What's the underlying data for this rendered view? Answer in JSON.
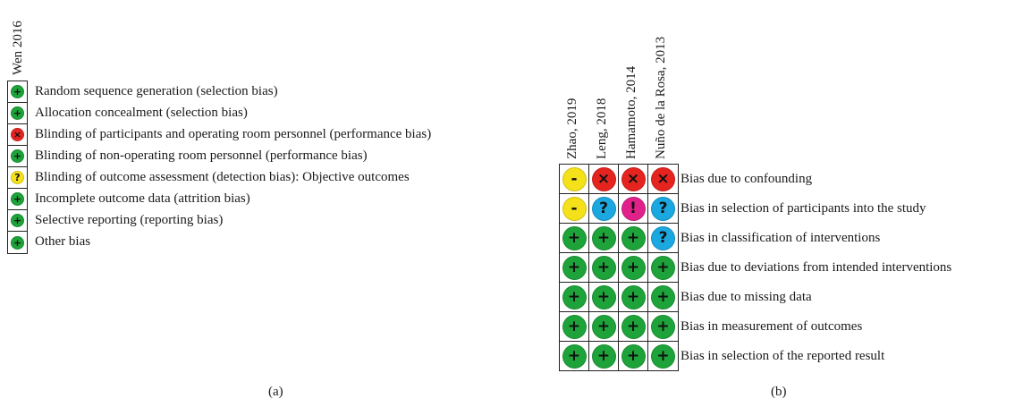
{
  "colors": {
    "low": "#1ea33a",
    "unclear": "#f5e11a",
    "high": "#e52420",
    "no_info": "#1ba7e0",
    "critical": "#e0218a"
  },
  "symbols": {
    "low": "+",
    "high": "×",
    "unclear": "?",
    "no_info": "?",
    "critical": "!",
    "moderate": "-"
  },
  "panel_a": {
    "study": "Wen 2016",
    "items": [
      {
        "label": "Random sequence generation (selection bias)",
        "judgement": "low"
      },
      {
        "label": "Allocation concealment (selection bias)",
        "judgement": "low"
      },
      {
        "label": "Blinding of participants and operating room personnel (performance bias)",
        "judgement": "high"
      },
      {
        "label": "Blinding of non-operating room personnel (performance bias)",
        "judgement": "low"
      },
      {
        "label": "Blinding of outcome assessment (detection bias): Objective outcomes",
        "judgement": "unclear"
      },
      {
        "label": "Incomplete outcome data (attrition bias)",
        "judgement": "low"
      },
      {
        "label": "Selective reporting (reporting bias)",
        "judgement": "low"
      },
      {
        "label": "Other bias",
        "judgement": "low"
      }
    ],
    "caption": "(a)"
  },
  "panel_b": {
    "studies": [
      "Zhao, 2019",
      "Leng, 2018",
      "Hamamoto, 2014",
      "Nuño de la Rosa, 2013"
    ],
    "domains": [
      {
        "label": "Bias due to confounding",
        "judgements": [
          "moderate",
          "high",
          "high",
          "high"
        ]
      },
      {
        "label": "Bias in selection of participants into the study",
        "judgements": [
          "moderate",
          "no_info",
          "critical",
          "no_info"
        ]
      },
      {
        "label": "Bias in classification of interventions",
        "judgements": [
          "low",
          "low",
          "low",
          "no_info"
        ]
      },
      {
        "label": "Bias due to deviations from intended interventions",
        "judgements": [
          "low",
          "low",
          "low",
          "low"
        ]
      },
      {
        "label": "Bias due to missing data",
        "judgements": [
          "low",
          "low",
          "low",
          "low"
        ]
      },
      {
        "label": "Bias in measurement of outcomes",
        "judgements": [
          "low",
          "low",
          "low",
          "low"
        ]
      },
      {
        "label": "Bias in selection of the reported result",
        "judgements": [
          "low",
          "low",
          "low",
          "low"
        ]
      }
    ],
    "caption": "(b)"
  }
}
